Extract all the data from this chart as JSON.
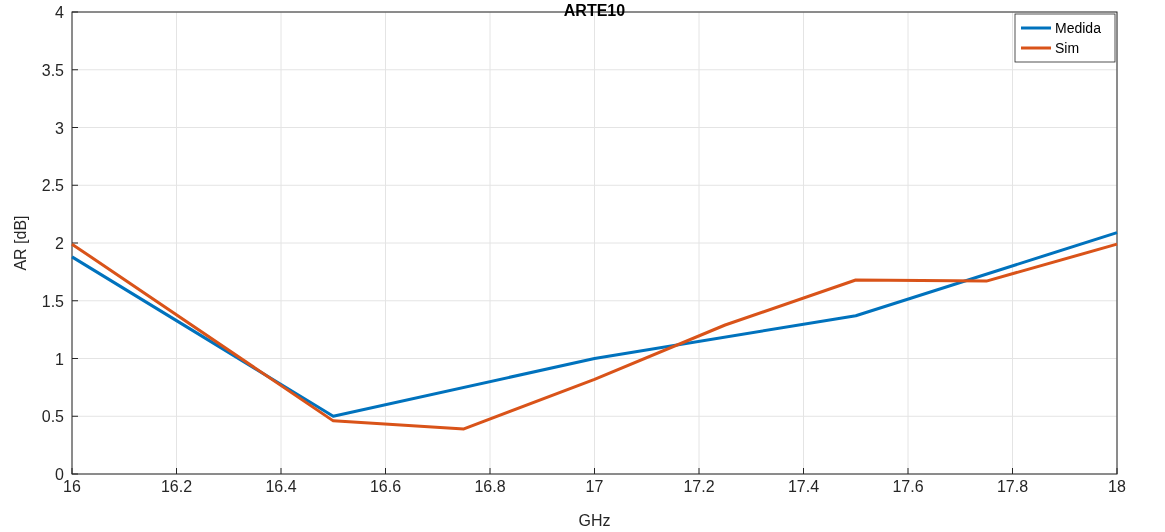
{
  "chart_data": {
    "type": "line",
    "title": "ARTE10",
    "xlabel": "GHz",
    "ylabel": "AR [dB]",
    "xlim": [
      16,
      18
    ],
    "xticks": [
      16,
      16.2,
      16.4,
      16.6,
      16.8,
      17,
      17.2,
      17.4,
      17.6,
      17.8,
      18
    ],
    "ylim": [
      0,
      4
    ],
    "yticks": [
      0,
      0.5,
      1,
      1.5,
      2,
      2.5,
      3,
      3.5,
      4
    ],
    "grid": true,
    "legend": "top right",
    "line_style": "solid",
    "series": [
      {
        "name": "Medida",
        "color": "#0072bd",
        "x": [
          16,
          16.5,
          17,
          17.5,
          18
        ],
        "values": [
          1.88,
          0.5,
          1.0,
          1.37,
          2.09
        ]
      },
      {
        "name": "Sim",
        "color": "#d95319",
        "x": [
          16,
          16.5,
          16.75,
          17,
          17.25,
          17.5,
          17.75,
          18
        ],
        "values": [
          1.99,
          0.46,
          0.39,
          0.82,
          1.29,
          1.68,
          1.67,
          1.99
        ]
      }
    ]
  }
}
